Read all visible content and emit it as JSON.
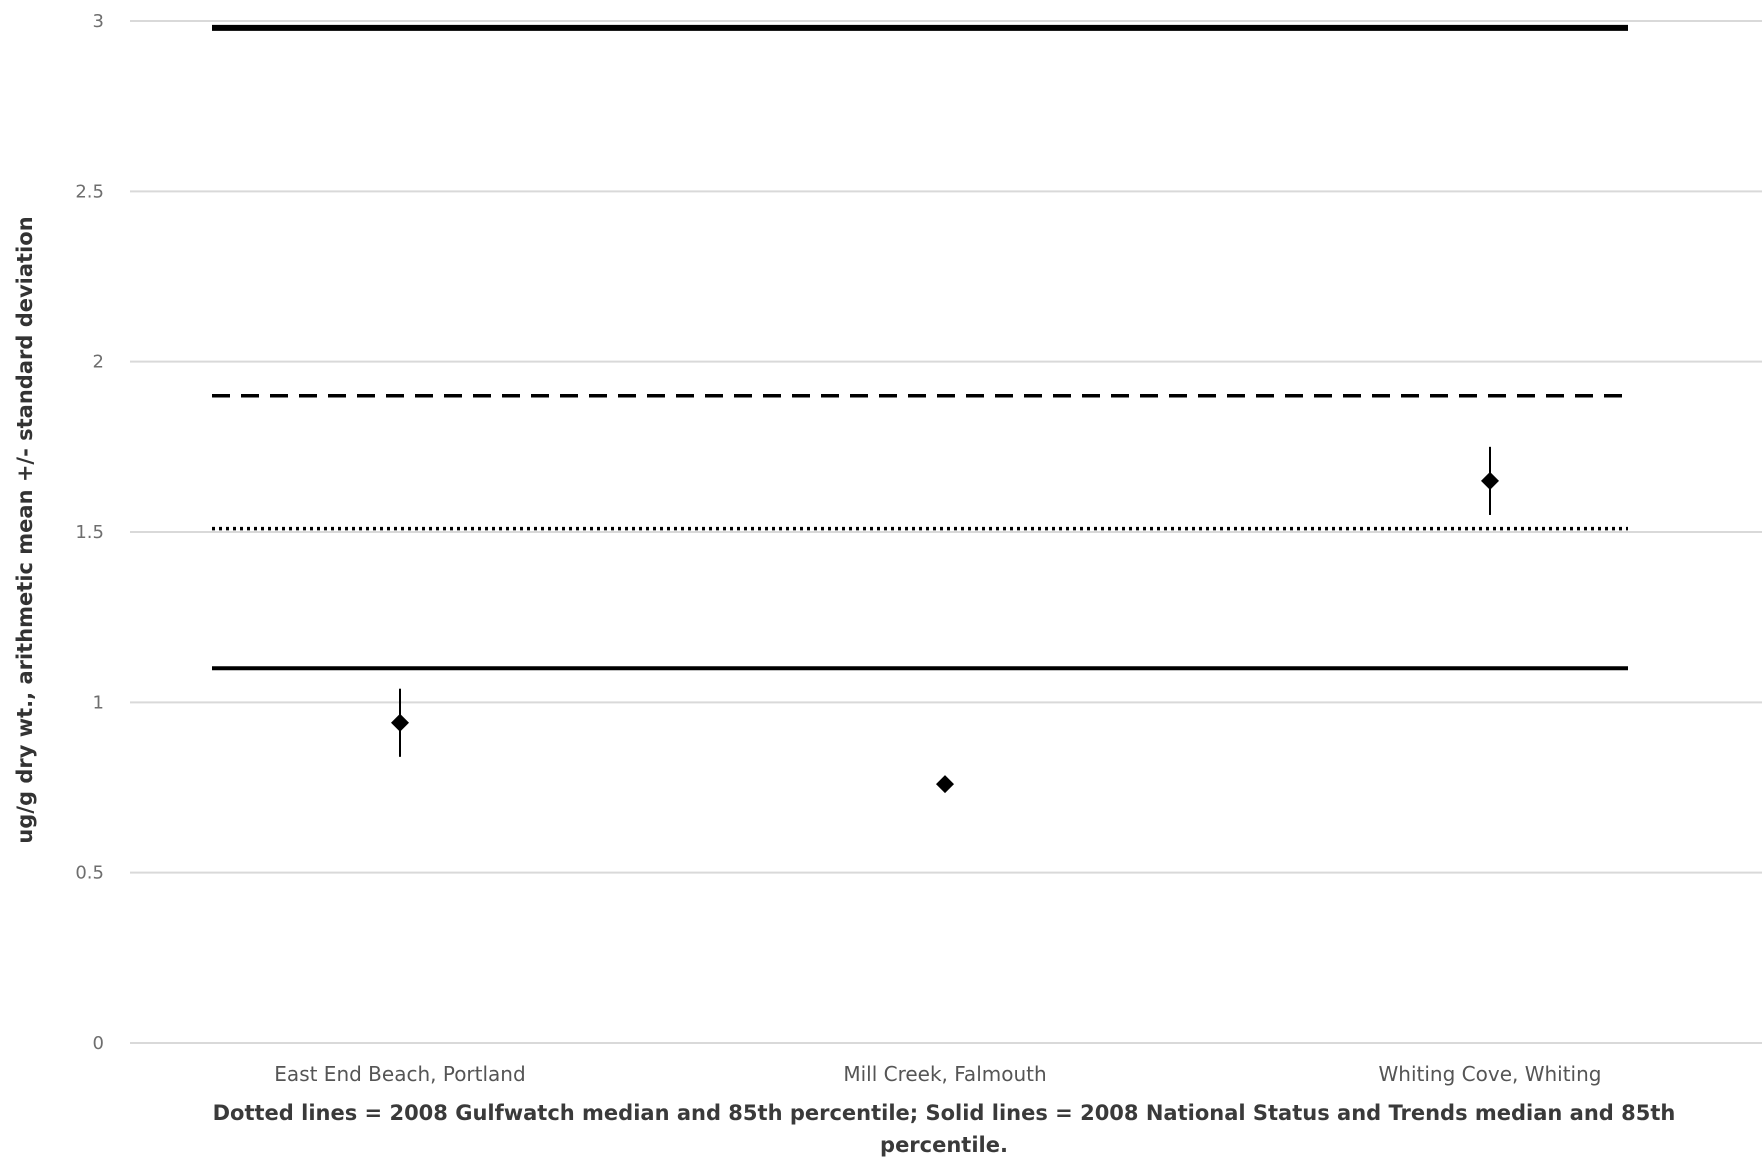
{
  "chart_data": {
    "type": "scatter",
    "title": "",
    "ylabel": "ug/g dry wt., arithmetic mean +/- standard deviation",
    "xlabel": "",
    "ylim": [
      0,
      3
    ],
    "yticks": [
      0,
      0.5,
      1,
      1.5,
      2,
      2.5,
      3
    ],
    "categories": [
      "East End Beach, Portland",
      "Mill Creek, Falmouth",
      "Whiting Cove, Whiting"
    ],
    "values": [
      0.94,
      0.76,
      1.65
    ],
    "error": [
      0.1,
      0.0,
      0.1
    ],
    "grid": true,
    "reference_lines": [
      {
        "value": 2.98,
        "style": "solid",
        "color": "#000000"
      },
      {
        "value": 1.9,
        "style": "dashed",
        "color": "#000000"
      },
      {
        "value": 1.51,
        "style": "dotted",
        "color": "#000000"
      },
      {
        "value": 1.1,
        "style": "solid",
        "color": "#000000"
      }
    ],
    "footnote_lines": [
      "Dotted lines = 2008 Gulfwatch median and 85th percentile; Solid lines = 2008 National Status and Trends median and 85th",
      "percentile."
    ]
  }
}
